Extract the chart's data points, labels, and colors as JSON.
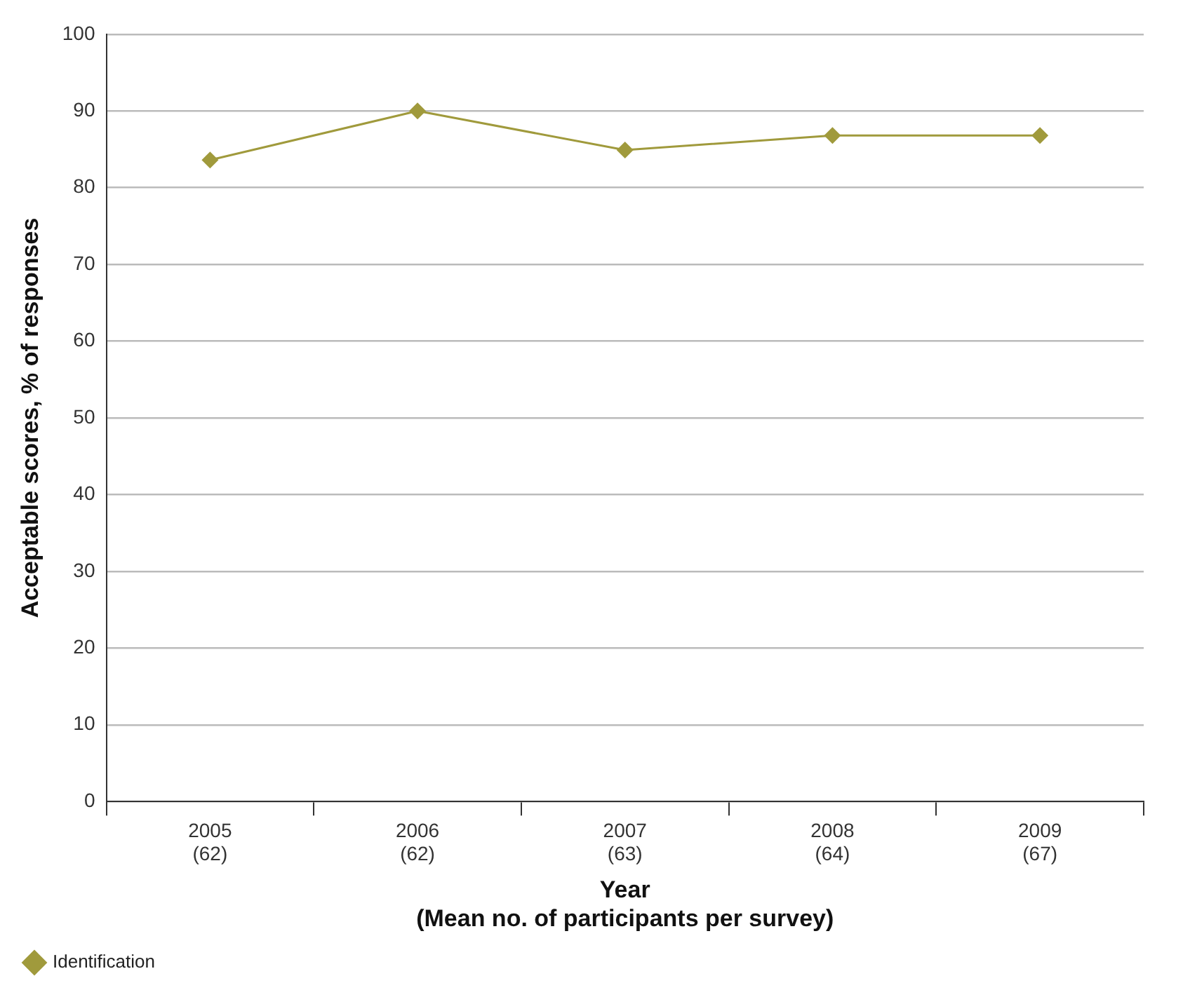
{
  "chart_data": {
    "type": "line",
    "xlabel": "Year\n(Mean no. of participants per survey)",
    "ylabel": "Acceptable scores, % of responses",
    "categories": [
      "2005\n(62)",
      "2006\n(62)",
      "2007\n(63)",
      "2008\n(64)",
      "2009\n(67)"
    ],
    "series": [
      {
        "name": "Identification",
        "color": "#a09a3c",
        "values": [
          83.6,
          90,
          84.9,
          86.8,
          86.8
        ]
      }
    ],
    "ylim": [
      0,
      100
    ],
    "yticks": [
      0,
      10,
      20,
      30,
      40,
      50,
      60,
      70,
      80,
      90,
      100
    ],
    "grid": "y",
    "legend": "bottom left",
    "marker": "diamond",
    "line_style": "solid"
  }
}
